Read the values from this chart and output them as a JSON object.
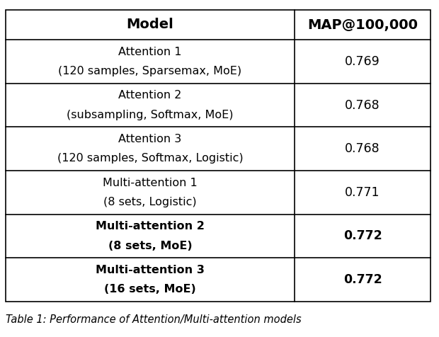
{
  "col_headers": [
    "Model",
    "MAP@100,000"
  ],
  "rows": [
    {
      "model_line1": "Attention 1",
      "model_line2": "(120 samples, Sparsemax, MoE)",
      "map": "0.769",
      "bold": false
    },
    {
      "model_line1": "Attention 2",
      "model_line2": "(subsampling, Softmax, MoE)",
      "map": "0.768",
      "bold": false
    },
    {
      "model_line1": "Attention 3",
      "model_line2": "(120 samples, Softmax, Logistic)",
      "map": "0.768",
      "bold": false
    },
    {
      "model_line1": "Multi-attention 1",
      "model_line2": "(8 sets, Logistic)",
      "map": "0.771",
      "bold": false
    },
    {
      "model_line1": "Multi-attention 2",
      "model_line2": "(8 sets, MoE)",
      "map": "0.772",
      "bold": true
    },
    {
      "model_line1": "Multi-attention 3",
      "model_line2": "(16 sets, MoE)",
      "map": "0.772",
      "bold": true
    }
  ],
  "caption": "Table 1: Performance of Attention/Multi-attention models",
  "bg_color": "#ffffff",
  "border_color": "#000000",
  "text_color": "#000000",
  "header_fontsize": 14,
  "body_fontsize": 11.5,
  "caption_fontsize": 10.5,
  "fig_width": 6.2,
  "fig_height": 4.76,
  "dpi": 100
}
